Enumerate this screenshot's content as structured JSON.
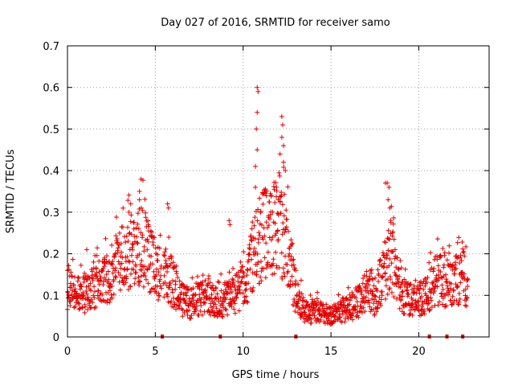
{
  "chart_data": {
    "type": "scatter",
    "title": "Day 027 of 2016, SRMTID for receiver samo",
    "xlabel": "GPS time / hours",
    "ylabel": "SRMTID / TECUs",
    "xlim": [
      0,
      24
    ],
    "ylim": [
      0,
      0.7
    ],
    "x_ticks": [
      0,
      5,
      10,
      15,
      20
    ],
    "y_ticks": [
      0,
      0.1,
      0.2,
      0.3,
      0.4,
      0.5,
      0.6,
      0.7
    ],
    "x_tick_labels": [
      "0",
      "5",
      "10",
      "15",
      "20"
    ],
    "y_tick_labels": [
      "0",
      "0.1",
      "0.2",
      "0.3",
      "0.4",
      "0.5",
      "0.6",
      "0.7"
    ],
    "grid": true,
    "marker": "+",
    "color": "#e00000",
    "series_name": "SRMTID",
    "profile": [
      {
        "x": 0.0,
        "y": 0.12
      },
      {
        "x": 0.5,
        "y": 0.1
      },
      {
        "x": 1.0,
        "y": 0.1
      },
      {
        "x": 1.5,
        "y": 0.12
      },
      {
        "x": 2.0,
        "y": 0.13
      },
      {
        "x": 2.5,
        "y": 0.14
      },
      {
        "x": 3.0,
        "y": 0.18
      },
      {
        "x": 3.5,
        "y": 0.2
      },
      {
        "x": 4.0,
        "y": 0.22
      },
      {
        "x": 4.5,
        "y": 0.21
      },
      {
        "x": 5.0,
        "y": 0.16
      },
      {
        "x": 5.5,
        "y": 0.15
      },
      {
        "x": 6.0,
        "y": 0.13
      },
      {
        "x": 6.5,
        "y": 0.09
      },
      {
        "x": 7.0,
        "y": 0.08
      },
      {
        "x": 7.5,
        "y": 0.09
      },
      {
        "x": 8.0,
        "y": 0.1
      },
      {
        "x": 8.5,
        "y": 0.08
      },
      {
        "x": 9.0,
        "y": 0.09
      },
      {
        "x": 9.5,
        "y": 0.1
      },
      {
        "x": 10.0,
        "y": 0.12
      },
      {
        "x": 10.5,
        "y": 0.18
      },
      {
        "x": 11.0,
        "y": 0.24
      },
      {
        "x": 11.5,
        "y": 0.25
      },
      {
        "x": 12.0,
        "y": 0.28
      },
      {
        "x": 12.5,
        "y": 0.22
      },
      {
        "x": 13.0,
        "y": 0.1
      },
      {
        "x": 13.5,
        "y": 0.06
      },
      {
        "x": 14.0,
        "y": 0.06
      },
      {
        "x": 14.5,
        "y": 0.06
      },
      {
        "x": 15.0,
        "y": 0.05
      },
      {
        "x": 15.5,
        "y": 0.06
      },
      {
        "x": 16.0,
        "y": 0.07
      },
      {
        "x": 16.5,
        "y": 0.08
      },
      {
        "x": 17.0,
        "y": 0.11
      },
      {
        "x": 17.5,
        "y": 0.09
      },
      {
        "x": 18.0,
        "y": 0.16
      },
      {
        "x": 18.5,
        "y": 0.18
      },
      {
        "x": 19.0,
        "y": 0.1
      },
      {
        "x": 19.5,
        "y": 0.09
      },
      {
        "x": 20.0,
        "y": 0.09
      },
      {
        "x": 20.5,
        "y": 0.1
      },
      {
        "x": 21.0,
        "y": 0.14
      },
      {
        "x": 21.5,
        "y": 0.13
      },
      {
        "x": 22.0,
        "y": 0.12
      },
      {
        "x": 22.5,
        "y": 0.16
      },
      {
        "x": 22.8,
        "y": 0.11
      }
    ],
    "spikes": [
      {
        "x": 10.8,
        "y": 0.6
      },
      {
        "x": 10.85,
        "y": 0.59
      },
      {
        "x": 10.8,
        "y": 0.54
      },
      {
        "x": 10.75,
        "y": 0.5
      },
      {
        "x": 10.8,
        "y": 0.45
      },
      {
        "x": 10.7,
        "y": 0.41
      },
      {
        "x": 10.7,
        "y": 0.36
      },
      {
        "x": 12.2,
        "y": 0.53
      },
      {
        "x": 12.25,
        "y": 0.51
      },
      {
        "x": 12.2,
        "y": 0.48
      },
      {
        "x": 12.3,
        "y": 0.46
      },
      {
        "x": 12.1,
        "y": 0.44
      },
      {
        "x": 12.3,
        "y": 0.42
      },
      {
        "x": 12.4,
        "y": 0.4
      },
      {
        "x": 11.9,
        "y": 0.36
      },
      {
        "x": 11.6,
        "y": 0.34
      },
      {
        "x": 12.0,
        "y": 0.33
      },
      {
        "x": 18.1,
        "y": 0.37
      },
      {
        "x": 18.2,
        "y": 0.37
      },
      {
        "x": 18.3,
        "y": 0.36
      },
      {
        "x": 18.25,
        "y": 0.33
      },
      {
        "x": 18.35,
        "y": 0.31
      },
      {
        "x": 18.4,
        "y": 0.28
      },
      {
        "x": 18.5,
        "y": 0.25
      },
      {
        "x": 3.6,
        "y": 0.32
      },
      {
        "x": 3.5,
        "y": 0.3
      },
      {
        "x": 4.1,
        "y": 0.35
      },
      {
        "x": 4.1,
        "y": 0.33
      },
      {
        "x": 4.2,
        "y": 0.31
      },
      {
        "x": 4.6,
        "y": 0.27
      },
      {
        "x": 5.7,
        "y": 0.32
      },
      {
        "x": 5.75,
        "y": 0.31
      },
      {
        "x": 9.2,
        "y": 0.28
      },
      {
        "x": 9.25,
        "y": 0.27
      },
      {
        "x": 13.0,
        "y": 0.16
      },
      {
        "x": 0.0,
        "y": 0.16
      },
      {
        "x": 1.1,
        "y": 0.21
      },
      {
        "x": 2.1,
        "y": 0.19
      },
      {
        "x": 2.1,
        "y": 0.17
      }
    ],
    "gap_markers_x": [
      5.4,
      8.7,
      13.0,
      20.6,
      21.6,
      22.5
    ]
  }
}
